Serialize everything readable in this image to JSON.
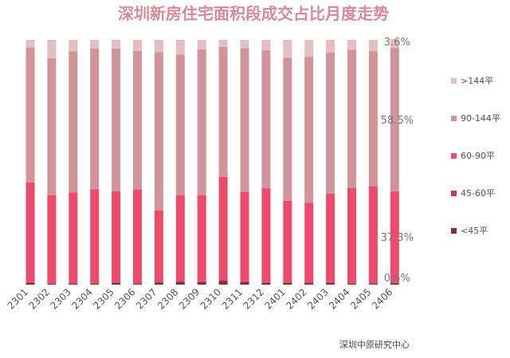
{
  "chart_data": {
    "type": "bar",
    "stacked": true,
    "orientation": "vertical",
    "title": "深圳新房住宅面积段成交占比月度走势",
    "xlabel": "",
    "ylabel": "",
    "ylim": [
      0,
      100
    ],
    "unit": "%",
    "source": "深圳中原研究中心",
    "categories": [
      "2301",
      "2302",
      "2303",
      "2304",
      "2305",
      "2306",
      "2307",
      "2308",
      "2309",
      "2310",
      "2311",
      "2312",
      "2401",
      "2402",
      "2403",
      "2404",
      "2405",
      "2406"
    ],
    "series": [
      {
        "name": "<45平",
        "color": "#8b2a3a",
        "values": [
          0.7,
          0.3,
          0.3,
          0.3,
          0.7,
          0.3,
          0.9,
          1.2,
          1.1,
          1.5,
          1.1,
          0.7,
          0.7,
          0.7,
          0.7,
          0.3,
          0.3,
          0.6
        ]
      },
      {
        "name": "45-60平",
        "color": "#c23b4f",
        "values": [
          0.3,
          0.3,
          0.3,
          0.3,
          0.3,
          0.3,
          0.3,
          0.3,
          0.3,
          0.3,
          0.3,
          0.3,
          0.3,
          0.3,
          0.3,
          0.3,
          0.3,
          0.3
        ]
      },
      {
        "name": "60-90平",
        "color": "#ee4b6c",
        "values": [
          40.8,
          35.9,
          37.1,
          38.4,
          37.2,
          38.3,
          29.1,
          35.1,
          35.2,
          42.2,
          36.6,
          38.4,
          33.3,
          32.4,
          36.2,
          38.8,
          39.6,
          37.3
        ]
      },
      {
        "name": "90-144平",
        "color": "#d09499",
        "values": [
          55.2,
          56.0,
          57.6,
          57.5,
          58.3,
          56.6,
          64.7,
          57.4,
          59.6,
          53.1,
          58.6,
          56.4,
          58.4,
          59.7,
          57.6,
          56.6,
          55.2,
          58.5
        ]
      },
      {
        "name": ">144平",
        "color": "#e4bfc0",
        "values": [
          3.0,
          7.5,
          4.7,
          3.5,
          3.5,
          4.5,
          5.0,
          6.0,
          3.8,
          2.9,
          3.4,
          4.2,
          7.3,
          6.9,
          5.2,
          4.0,
          4.6,
          3.6
        ]
      }
    ],
    "data_labels": [
      {
        "series": "<45平",
        "category": "2406",
        "text": "0.6%"
      },
      {
        "series": "60-90平",
        "category": "2406",
        "text": "37.3%"
      },
      {
        "series": "90-144平",
        "category": "2406",
        "text": "58.5%"
      },
      {
        "series": ">144平",
        "category": "2406",
        "text": "3.6%"
      }
    ],
    "legend": {
      "position": "right",
      "order": [
        ">144平",
        "90-144平",
        "60-90平",
        "45-60平",
        "<45平"
      ]
    }
  }
}
